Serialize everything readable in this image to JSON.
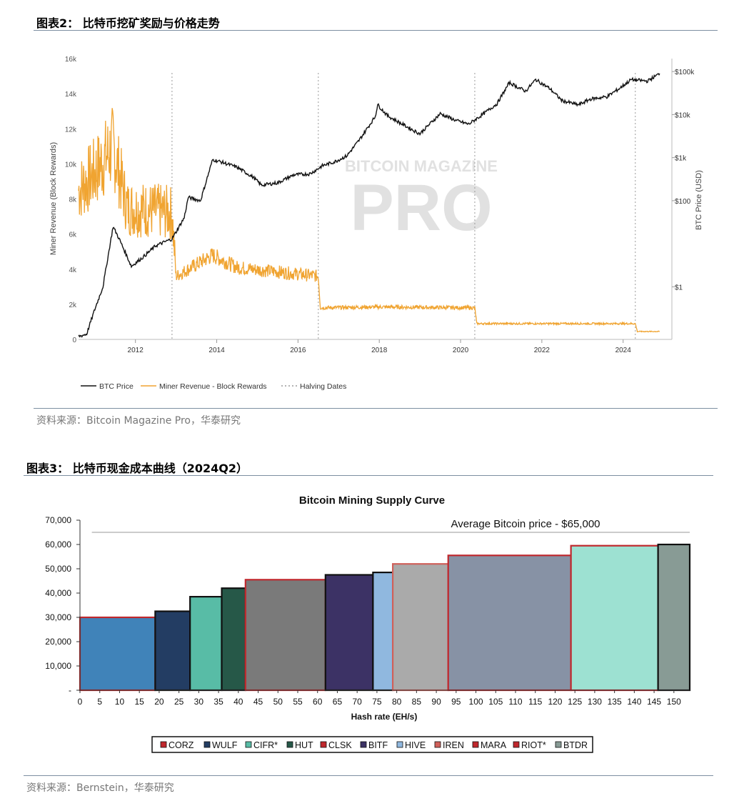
{
  "figure2": {
    "title": "图表2： 比特币挖矿奖励与价格走势",
    "source": "资料来源：Bitcoin Magazine Pro，华泰研究",
    "watermark_top": "BITCOIN MAGAZINE",
    "watermark_main": "PRO",
    "colors": {
      "price": "#111111",
      "revenue": "#f0a431",
      "halving": "#9a9a9a"
    },
    "chart_data": {
      "type": "line",
      "ylabel": "Miner Revenue (Block Rewards)",
      "y2label": "BTC Price (USD)",
      "ylim": [
        0,
        16000
      ],
      "y_ticks": [
        "0",
        "2k",
        "4k",
        "6k",
        "8k",
        "10k",
        "12k",
        "14k",
        "16k"
      ],
      "y_tick_values": [
        0,
        2000,
        4000,
        6000,
        8000,
        10000,
        12000,
        14000,
        16000
      ],
      "y2_ticks": [
        "$1",
        "$100",
        "$1k",
        "$10k",
        "$100k"
      ],
      "y2_tick_values": [
        1,
        100,
        1000,
        10000,
        100000
      ],
      "y2_scale": "log",
      "x_ticks": [
        "2012",
        "2014",
        "2016",
        "2018",
        "2020",
        "2022",
        "2024"
      ],
      "x_tick_values": [
        2012,
        2014,
        2016,
        2018,
        2020,
        2022,
        2024
      ],
      "xlim": [
        2010.6,
        2025.2
      ],
      "halving_dates": [
        2012.9,
        2016.5,
        2020.35,
        2024.3
      ],
      "legend": [
        "BTC Price",
        "Miner Revenue - Block Rewards",
        "Halving Dates"
      ],
      "legend_position": "bottom-left",
      "series": [
        {
          "name": "BTC Price",
          "axis": "right",
          "x": [
            2010.6,
            2010.8,
            2011.0,
            2011.2,
            2011.45,
            2011.6,
            2011.9,
            2012.2,
            2012.5,
            2012.9,
            2013.2,
            2013.3,
            2013.6,
            2013.9,
            2014.1,
            2014.5,
            2014.9,
            2015.1,
            2015.5,
            2015.9,
            2016.3,
            2016.6,
            2016.9,
            2017.2,
            2017.5,
            2017.9,
            2017.96,
            2018.2,
            2018.5,
            2018.9,
            2019.0,
            2019.5,
            2019.9,
            2020.2,
            2020.5,
            2020.9,
            2021.2,
            2021.6,
            2021.85,
            2022.2,
            2022.5,
            2022.9,
            2023.2,
            2023.6,
            2023.9,
            2024.2,
            2024.6,
            2024.9
          ],
          "values": [
            0.07,
            0.08,
            0.3,
            1.0,
            25,
            13,
            3,
            5,
            9,
            13,
            40,
            120,
            100,
            900,
            800,
            600,
            350,
            230,
            260,
            400,
            420,
            650,
            800,
            1100,
            2500,
            9000,
            17000,
            9500,
            6500,
            4000,
            3600,
            10500,
            7200,
            6000,
            9400,
            18000,
            55000,
            35000,
            65000,
            40000,
            21000,
            16800,
            23000,
            26000,
            40000,
            65000,
            60000,
            90000
          ]
        },
        {
          "name": "Miner Revenue - Block Rewards",
          "axis": "left",
          "x": [
            2010.6,
            2011.0,
            2011.45,
            2011.8,
            2012.2,
            2012.9,
            2013.0,
            2013.9,
            2014.5,
            2016.5,
            2016.55,
            2018.0,
            2020.35,
            2020.4,
            2022.0,
            2024.3,
            2024.35,
            2024.9
          ],
          "values": [
            8500,
            9500,
            11000,
            7500,
            7400,
            7200,
            3600,
            4800,
            4100,
            3600,
            1800,
            1850,
            1800,
            900,
            900,
            900,
            450,
            450
          ]
        }
      ]
    }
  },
  "figure3": {
    "title": "图表3： 比特币现金成本曲线（2024Q2）",
    "source": "资料来源：Bernstein，华泰研究",
    "chart_data": {
      "type": "bar",
      "subtype": "variable-width supply curve",
      "title": "Bitcoin Mining Supply Curve",
      "xlabel": "Hash rate (EH/s)",
      "ylabel": "",
      "ylim": [
        0,
        70000
      ],
      "xlim": [
        0,
        154
      ],
      "y_ticks": [
        "-",
        "10,000",
        "20,000",
        "30,000",
        "40,000",
        "50,000",
        "60,000",
        "70,000"
      ],
      "y_tick_values": [
        0,
        10000,
        20000,
        30000,
        40000,
        50000,
        60000,
        70000
      ],
      "x_ticks": [
        "0",
        "5",
        "10",
        "15",
        "20",
        "25",
        "30",
        "35",
        "40",
        "45",
        "50",
        "55",
        "60",
        "65",
        "70",
        "75",
        "80",
        "85",
        "90",
        "95",
        "100",
        "105",
        "110",
        "115",
        "120",
        "125",
        "130",
        "135",
        "140",
        "145",
        "150"
      ],
      "x_tick_values": [
        0,
        5,
        10,
        15,
        20,
        25,
        30,
        35,
        40,
        45,
        50,
        55,
        60,
        65,
        70,
        75,
        80,
        85,
        90,
        95,
        100,
        105,
        110,
        115,
        120,
        125,
        130,
        135,
        140,
        145,
        150
      ],
      "reference_line": {
        "label": "Average Bitcoin price - $65,000",
        "value": 65000
      },
      "legend_position": "bottom",
      "series": [
        {
          "name": "CORZ",
          "x_start": 0,
          "hash_rate": 19,
          "cost": 30000,
          "fill": "#4083b9",
          "border": "#c0282d",
          "legend_color": "#c0282d"
        },
        {
          "name": "WULF",
          "x_start": 19,
          "hash_rate": 8.8,
          "cost": 32500,
          "fill": "#233d63",
          "border": "#111111",
          "legend_color": "#233d63"
        },
        {
          "name": "CIFR*",
          "x_start": 27.8,
          "hash_rate": 8,
          "cost": 38500,
          "fill": "#58bca6",
          "border": "#111111",
          "legend_color": "#58bca6"
        },
        {
          "name": "HUT",
          "x_start": 35.8,
          "hash_rate": 6,
          "cost": 42000,
          "fill": "#265848",
          "border": "#111111",
          "legend_color": "#265848"
        },
        {
          "name": "CLSK",
          "x_start": 41.8,
          "hash_rate": 20.2,
          "cost": 45500,
          "fill": "#7a7a7a",
          "border": "#c0282d",
          "legend_color": "#c0282d"
        },
        {
          "name": "BITF",
          "x_start": 62,
          "hash_rate": 12,
          "cost": 47500,
          "fill": "#3c3265",
          "border": "#111111",
          "legend_color": "#3c3265"
        },
        {
          "name": "HIVE",
          "x_start": 74,
          "hash_rate": 5,
          "cost": 48500,
          "fill": "#90b8df",
          "border": "#111111",
          "legend_color": "#90b8df"
        },
        {
          "name": "IREN",
          "x_start": 79,
          "hash_rate": 14,
          "cost": 52000,
          "fill": "#aaaaaa",
          "border": "#d0605a",
          "legend_color": "#d0605a"
        },
        {
          "name": "MARA",
          "x_start": 93,
          "hash_rate": 31,
          "cost": 55500,
          "fill": "#8792a5",
          "border": "#c0282d",
          "legend_color": "#c0282d"
        },
        {
          "name": "RIOT*",
          "x_start": 124,
          "hash_rate": 22,
          "cost": 59500,
          "fill": "#9de1d2",
          "border": "#c0282d",
          "legend_color": "#c0282d"
        },
        {
          "name": "BTDR",
          "x_start": 146,
          "hash_rate": 8,
          "cost": 60000,
          "fill": "#889b95",
          "border": "#111111",
          "legend_color": "#889b95"
        }
      ]
    }
  }
}
